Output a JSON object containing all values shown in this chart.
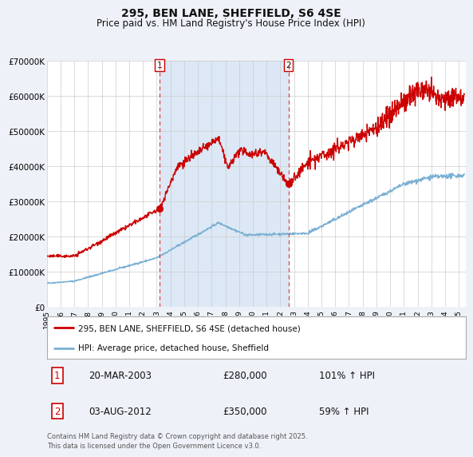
{
  "title": "295, BEN LANE, SHEFFIELD, S6 4SE",
  "subtitle": "Price paid vs. HM Land Registry's House Price Index (HPI)",
  "red_label": "295, BEN LANE, SHEFFIELD, S6 4SE (detached house)",
  "blue_label": "HPI: Average price, detached house, Sheffield",
  "annotation1_date": "20-MAR-2003",
  "annotation1_price": "£280,000",
  "annotation1_hpi": "101% ↑ HPI",
  "annotation2_date": "03-AUG-2012",
  "annotation2_price": "£350,000",
  "annotation2_hpi": "59% ↑ HPI",
  "sale1_year": 2003.22,
  "sale1_value": 280000,
  "sale2_year": 2012.59,
  "sale2_value": 350000,
  "vline1_year": 2003.22,
  "vline2_year": 2012.59,
  "ylim": [
    0,
    700000
  ],
  "xlim_start": 1995,
  "xlim_end": 2025.5,
  "background_color": "#eef2f8",
  "plot_bg_color": "#ffffff",
  "shaded_region_color": "#dce8f5",
  "red_line_color": "#cc0000",
  "blue_line_color": "#7ab0d4",
  "grid_color": "#cccccc",
  "vline_color": "#dd4444",
  "footnote": "Contains HM Land Registry data © Crown copyright and database right 2025.\nThis data is licensed under the Open Government Licence v3.0."
}
